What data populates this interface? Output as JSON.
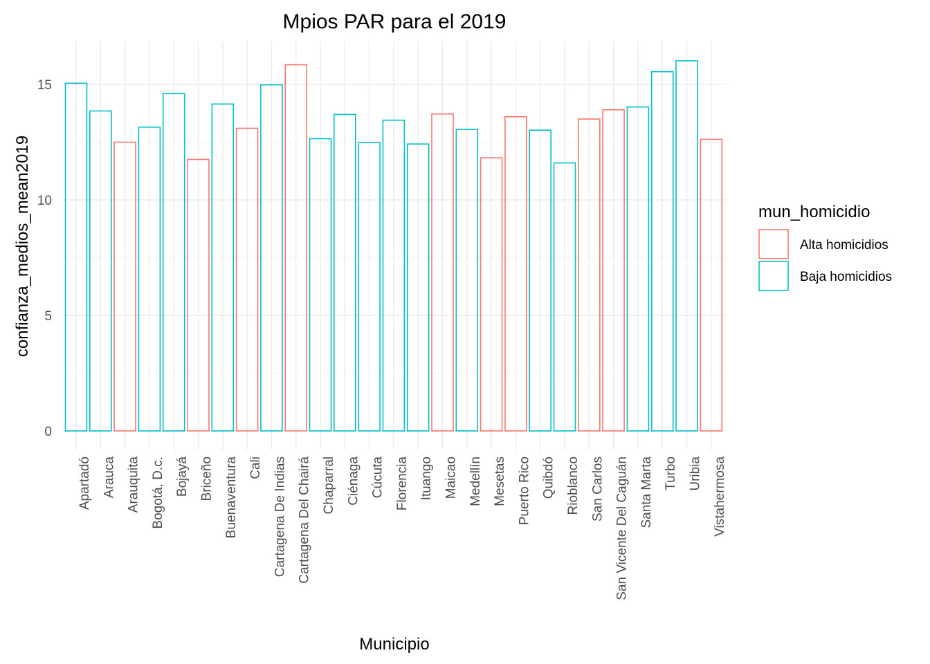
{
  "chart_data": {
    "type": "bar",
    "title": "Mpios PAR para el 2019",
    "xlabel": "Municipio",
    "ylabel": "confianza_medios_mean2019",
    "ylim": [
      0,
      16.5
    ],
    "y_ticks": [
      0,
      5,
      10,
      15
    ],
    "grid": true,
    "legend": {
      "title": "mun_homicidio",
      "placement": "right",
      "entries": [
        {
          "label": "Alta homicidios",
          "color": "#F8766D"
        },
        {
          "label": "Baja homicidios",
          "color": "#00BFC4"
        }
      ]
    },
    "categories": [
      "Apartadó",
      "Arauca",
      "Arauquita",
      "Bogotá, D.c.",
      "Bojayá",
      "Briceño",
      "Buenaventura",
      "Cali",
      "Cartagena De Indias",
      "Cartagena Del Chairá",
      "Chaparral",
      "Ciénaga",
      "Cúcuta",
      "Florencia",
      "Ituango",
      "Maicao",
      "Medellín",
      "Mesetas",
      "Puerto Rico",
      "Quibdó",
      "Rioblanco",
      "San Carlos",
      "San Vicente Del Caguán",
      "Santa Marta",
      "Turbo",
      "Uribia",
      "Vistahermosa"
    ],
    "values": [
      15.05,
      13.85,
      12.5,
      13.15,
      14.6,
      11.75,
      14.15,
      13.1,
      14.98,
      15.85,
      12.65,
      13.7,
      12.48,
      13.45,
      12.42,
      13.72,
      13.05,
      11.82,
      13.6,
      13.02,
      11.6,
      13.5,
      13.9,
      14.02,
      15.55,
      16.02,
      12.62
    ],
    "groups": [
      "Baja homicidios",
      "Baja homicidios",
      "Alta homicidios",
      "Baja homicidios",
      "Baja homicidios",
      "Alta homicidios",
      "Baja homicidios",
      "Alta homicidios",
      "Baja homicidios",
      "Alta homicidios",
      "Baja homicidios",
      "Baja homicidios",
      "Baja homicidios",
      "Baja homicidios",
      "Baja homicidios",
      "Alta homicidios",
      "Baja homicidios",
      "Alta homicidios",
      "Alta homicidios",
      "Baja homicidios",
      "Baja homicidios",
      "Alta homicidios",
      "Alta homicidios",
      "Baja homicidios",
      "Baja homicidios",
      "Baja homicidios",
      "Alta homicidios"
    ]
  }
}
